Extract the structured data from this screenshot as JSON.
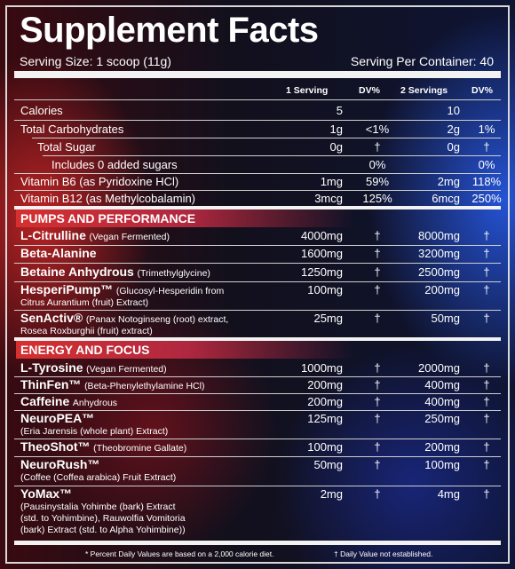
{
  "title": "Supplement Facts",
  "serving_size": "Serving Size: 1 scoop (11g)",
  "servings_per_container": "Serving Per Container: 40",
  "headers": {
    "one_serving": "1 Serving",
    "dv1": "DV%",
    "two_servings": "2 Servings",
    "dv2": "DV%"
  },
  "nutrients": [
    {
      "name": "Calories",
      "s1": "5",
      "dv1": "",
      "s2": "10",
      "dv2": ""
    },
    {
      "name": "Total Carbohydrates",
      "s1": "1g",
      "dv1": "<1%",
      "s2": "2g",
      "dv2": "1%"
    },
    {
      "name": "Total Sugar",
      "s1": "0g",
      "dv1": "†",
      "s2": "0g",
      "dv2": "†"
    },
    {
      "name": "Includes 0 added sugars",
      "s1": "",
      "dv1": "0%",
      "s2": "",
      "dv2": "0%"
    },
    {
      "name": "Vitamin B6 (as Pyridoxine HCl)",
      "s1": "1mg",
      "dv1": "59%",
      "s2": "2mg",
      "dv2": "118%"
    },
    {
      "name": "Vitamin B12 (as Methylcobalamin)",
      "s1": "3mcg",
      "dv1": "125%",
      "s2": "6mcg",
      "dv2": "250%"
    }
  ],
  "section1": {
    "title": "PUMPS AND PERFORMANCE",
    "items": [
      {
        "name": "L-Citrulline",
        "desc": "(Vegan Fermented)",
        "desc2": "",
        "s1": "4000mg",
        "dv1": "†",
        "s2": "8000mg",
        "dv2": "†"
      },
      {
        "name": "Beta-Alanine",
        "desc": "",
        "desc2": "",
        "s1": "1600mg",
        "dv1": "†",
        "s2": "3200mg",
        "dv2": "†"
      },
      {
        "name": "Betaine Anhydrous",
        "desc": "(Trimethylglycine)",
        "desc2": "",
        "s1": "1250mg",
        "dv1": "†",
        "s2": "2500mg",
        "dv2": "†"
      },
      {
        "name": "HesperiPump™",
        "desc": "(Glucosyl-Hesperidin from",
        "desc2": "Citrus Aurantium (fruit) Extract)",
        "s1": "100mg",
        "dv1": "†",
        "s2": "200mg",
        "dv2": "†"
      },
      {
        "name": "SenActiv®",
        "desc": "(Panax Notoginseng (root) extract,",
        "desc2": "Rosea Roxburghii (fruit) extract)",
        "s1": "25mg",
        "dv1": "†",
        "s2": "50mg",
        "dv2": "†"
      }
    ]
  },
  "section2": {
    "title": "ENERGY AND FOCUS",
    "items": [
      {
        "name": "L-Tyrosine",
        "desc": "(Vegan Fermented)",
        "desc2": "",
        "s1": "1000mg",
        "dv1": "†",
        "s2": "2000mg",
        "dv2": "†"
      },
      {
        "name": "ThinFen™",
        "desc": "(Beta-Phenylethylamine HCl)",
        "desc2": "",
        "s1": "200mg",
        "dv1": "†",
        "s2": "400mg",
        "dv2": "†"
      },
      {
        "name": "Caffeine",
        "desc": "Anhydrous",
        "desc2": "",
        "s1": "200mg",
        "dv1": "†",
        "s2": "400mg",
        "dv2": "†"
      },
      {
        "name": "NeuroPEA™",
        "desc": "",
        "desc2": "(Eria Jarensis (whole plant) Extract)",
        "s1": "125mg",
        "dv1": "†",
        "s2": "250mg",
        "dv2": "†"
      },
      {
        "name": "TheoShot™",
        "desc": "(Theobromine Gallate)",
        "desc2": "",
        "s1": "100mg",
        "dv1": "†",
        "s2": "200mg",
        "dv2": "†"
      },
      {
        "name": "NeuroRush™",
        "desc": "",
        "desc2": "(Coffee (Coffea arabica) Fruit Extract)",
        "s1": "50mg",
        "dv1": "†",
        "s2": "100mg",
        "dv2": "†"
      },
      {
        "name": "YoMax™",
        "desc": "",
        "desc2": "(Pausinystalia Yohimbe (bark) Extract",
        "desc3": "(std. to Yohimbine), Rauwolfia Vomitoria",
        "desc4": "(bark) Extract (std. to Alpha Yohimbine))",
        "s1": "2mg",
        "dv1": "†",
        "s2": "4mg",
        "dv2": "†"
      }
    ]
  },
  "footnote_left": "* Percent Daily Values are based on a 2,000 calorie diet.",
  "footnote_right": "† Daily Value not established."
}
